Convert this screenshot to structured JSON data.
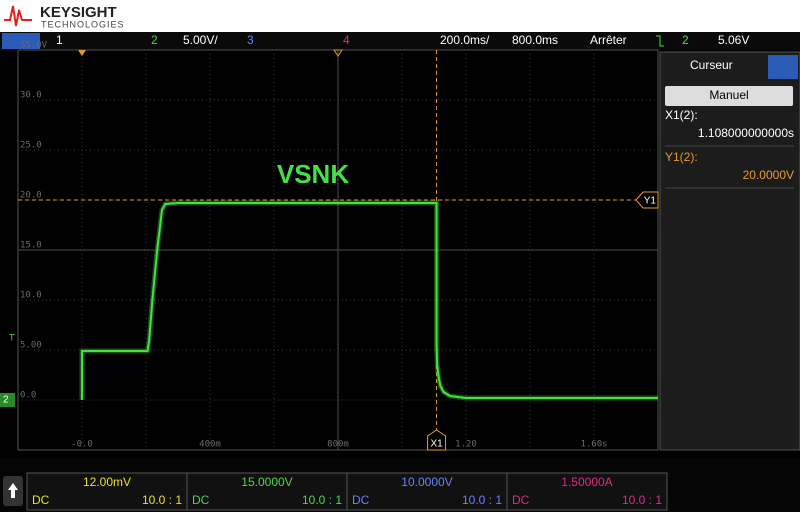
{
  "header": {
    "brand": "KEYSIGHT",
    "sub": "TECHNOLOGIES"
  },
  "status_bar": {
    "ch1": "1",
    "ch2": "2",
    "ch2_scale": "5.00V/",
    "ch3": "3",
    "ch4": "4",
    "timebase": "200.0ms/",
    "delay": "800.0ms",
    "run_state": "Arrêter",
    "trigger_source": "2",
    "trigger_level": "5.06V",
    "trigger_marker": "T"
  },
  "chart_data": {
    "type": "line",
    "annotation": "VSNK",
    "x": [
      0,
      0,
      0.205,
      0.21,
      0.22,
      0.235,
      0.25,
      0.26,
      0.3,
      1.108,
      1.108,
      1.11,
      1.115,
      1.12,
      1.13,
      1.15,
      1.2,
      1.8
    ],
    "series": [
      {
        "color": "#46e046",
        "values": [
          0,
          4.9,
          4.9,
          6,
          10,
          15,
          19,
          19.6,
          19.7,
          19.7,
          5.5,
          3.5,
          2.2,
          1.4,
          0.8,
          0.4,
          0.2,
          0.2
        ]
      }
    ],
    "xlim": [
      -0.2,
      1.8
    ],
    "ylim": [
      -5,
      35
    ],
    "xticks": [
      {
        "value": 0,
        "label": "-0.0"
      },
      {
        "value": 0.4,
        "label": "400m"
      },
      {
        "value": 0.8,
        "label": "800m"
      },
      {
        "value": 1.2,
        "label": "1.20"
      },
      {
        "value": 1.6,
        "label": "1.60s"
      }
    ],
    "yticks": [
      {
        "value": 35,
        "label": "35.0V"
      },
      {
        "value": 30,
        "label": "30.0"
      },
      {
        "value": 25,
        "label": "25.0"
      },
      {
        "value": 20,
        "label": "20.0"
      },
      {
        "value": 15,
        "label": "15.0"
      },
      {
        "value": 10,
        "label": "10.0"
      },
      {
        "value": 5,
        "label": "5.00"
      },
      {
        "value": 0,
        "label": "0.0"
      }
    ],
    "x_cursor": {
      "value": 1.108,
      "label": "X1"
    },
    "y_cursor": {
      "value": 20,
      "label": "Y1"
    },
    "grid": true
  },
  "cursor_panel": {
    "title": "Curseur",
    "mode": "Manuel",
    "x1_label": "X1(2):",
    "x1_value": "1.108000000000s",
    "y1_label": "Y1(2):",
    "y1_value": "20.0000V"
  },
  "channels": [
    {
      "scale": "12.00mV",
      "coupling": "DC",
      "probe": "10.0 : 1",
      "color": "#e8e030"
    },
    {
      "scale": "15.0000V",
      "coupling": "DC",
      "probe": "10.0 : 1",
      "color": "#4cd84c"
    },
    {
      "scale": "10.0000V",
      "coupling": "DC",
      "probe": "10.0 : 1",
      "color": "#6a80ff"
    },
    {
      "scale": "1.50000A",
      "coupling": "DC",
      "probe": "10.0 : 1",
      "color": "#e0288c"
    }
  ]
}
